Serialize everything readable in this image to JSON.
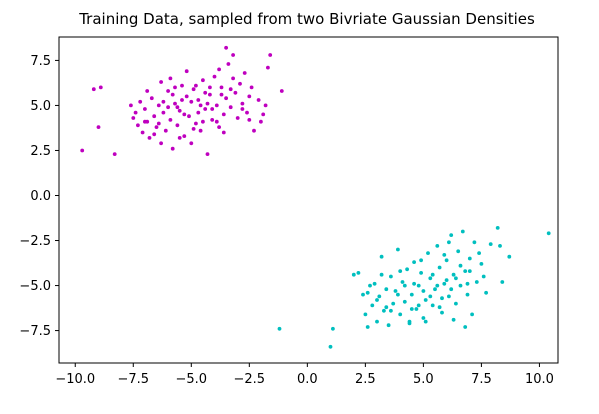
{
  "chart_data": {
    "type": "scatter",
    "title": "Training Data, sampled from two Bivriate Gaussian Densities",
    "xlabel": "",
    "ylabel": "",
    "xlim": [
      -10.7,
      10.8
    ],
    "ylim": [
      -9.3,
      8.8
    ],
    "xticks": [
      -10.0,
      -7.5,
      -5.0,
      -2.5,
      0.0,
      2.5,
      5.0,
      7.5,
      10.0
    ],
    "xtick_labels": [
      "−10.0",
      "−7.5",
      "−5.0",
      "−2.5",
      "0.0",
      "2.5",
      "5.0",
      "7.5",
      "10.0"
    ],
    "yticks": [
      7.5,
      5.0,
      2.5,
      0.0,
      -2.5,
      -5.0,
      -7.5
    ],
    "ytick_labels": [
      "7.5",
      "5.0",
      "2.5",
      "0.0",
      "−2.5",
      "−5.0",
      "−7.5"
    ],
    "grid": false,
    "legend": "none",
    "series": [
      {
        "color": "#bf00bf",
        "points": [
          [
            -9.7,
            2.5
          ],
          [
            -9.2,
            5.9
          ],
          [
            -8.9,
            6.0
          ],
          [
            -9.0,
            3.8
          ],
          [
            -8.3,
            2.3
          ],
          [
            -7.6,
            5.0
          ],
          [
            -7.5,
            4.3
          ],
          [
            -7.4,
            4.6
          ],
          [
            -7.3,
            3.9
          ],
          [
            -7.2,
            5.2
          ],
          [
            -7.1,
            3.5
          ],
          [
            -7.0,
            4.8
          ],
          [
            -6.9,
            4.1
          ],
          [
            -6.8,
            3.2
          ],
          [
            -6.7,
            5.4
          ],
          [
            -6.6,
            4.4
          ],
          [
            -6.5,
            3.8
          ],
          [
            -6.4,
            5.0
          ],
          [
            -6.3,
            2.9
          ],
          [
            -6.2,
            4.6
          ],
          [
            -6.1,
            3.6
          ],
          [
            -6.0,
            5.8
          ],
          [
            -5.9,
            4.2
          ],
          [
            -5.8,
            2.6
          ],
          [
            -5.7,
            5.1
          ],
          [
            -5.6,
            3.9
          ],
          [
            -5.5,
            4.7
          ],
          [
            -5.4,
            6.1
          ],
          [
            -5.3,
            3.3
          ],
          [
            -5.2,
            5.5
          ],
          [
            -5.1,
            4.4
          ],
          [
            -5.0,
            2.9
          ],
          [
            -4.9,
            5.9
          ],
          [
            -4.8,
            4.0
          ],
          [
            -4.7,
            5.3
          ],
          [
            -4.6,
            3.6
          ],
          [
            -4.5,
            6.4
          ],
          [
            -4.4,
            4.8
          ],
          [
            -4.3,
            2.3
          ],
          [
            -4.2,
            5.6
          ],
          [
            -4.1,
            4.2
          ],
          [
            -4.0,
            6.6
          ],
          [
            -3.9,
            5.0
          ],
          [
            -3.8,
            3.8
          ],
          [
            -3.7,
            6.0
          ],
          [
            -3.6,
            4.5
          ],
          [
            -3.5,
            5.4
          ],
          [
            -3.4,
            7.3
          ],
          [
            -3.3,
            4.9
          ],
          [
            -3.2,
            6.5
          ],
          [
            -3.1,
            5.7
          ],
          [
            -3.0,
            4.3
          ],
          [
            -2.9,
            6.2
          ],
          [
            -2.8,
            5.1
          ],
          [
            -2.6,
            4.6
          ],
          [
            -2.5,
            5.5
          ],
          [
            -2.4,
            6.0
          ],
          [
            -2.3,
            3.6
          ],
          [
            -2.1,
            5.3
          ],
          [
            -2.0,
            4.1
          ],
          [
            -1.8,
            5.0
          ],
          [
            -1.7,
            7.1
          ],
          [
            -1.6,
            7.8
          ],
          [
            -1.1,
            5.8
          ],
          [
            -1.9,
            4.5
          ],
          [
            -6.9,
            5.8
          ],
          [
            -6.3,
            6.3
          ],
          [
            -5.9,
            6.5
          ],
          [
            -5.2,
            6.9
          ],
          [
            -4.8,
            6.1
          ],
          [
            -4.2,
            6.0
          ],
          [
            -3.8,
            7.0
          ],
          [
            -3.5,
            8.2
          ],
          [
            -3.2,
            7.8
          ],
          [
            -2.7,
            6.8
          ],
          [
            -5.6,
            4.9
          ],
          [
            -5.0,
            5.2
          ],
          [
            -4.6,
            5.0
          ],
          [
            -4.1,
            4.8
          ],
          [
            -5.3,
            4.5
          ],
          [
            -6.2,
            5.2
          ],
          [
            -5.8,
            5.6
          ],
          [
            -4.4,
            5.7
          ],
          [
            -3.9,
            4.1
          ],
          [
            -6.6,
            3.4
          ],
          [
            -5.5,
            3.2
          ],
          [
            -4.9,
            3.7
          ],
          [
            -4.5,
            4.1
          ],
          [
            -3.6,
            3.5
          ],
          [
            -7.0,
            4.1
          ],
          [
            -6.4,
            4.0
          ],
          [
            -6.0,
            4.9
          ],
          [
            -5.4,
            5.3
          ],
          [
            -4.7,
            4.6
          ],
          [
            -4.3,
            5.1
          ],
          [
            -3.7,
            5.6
          ],
          [
            -3.3,
            5.9
          ],
          [
            -2.8,
            4.8
          ],
          [
            -2.5,
            4.2
          ],
          [
            -5.7,
            6.0
          ]
        ]
      },
      {
        "color": "#00bfbf",
        "points": [
          [
            -1.2,
            -7.4
          ],
          [
            1.0,
            -8.4
          ],
          [
            1.1,
            -7.4
          ],
          [
            2.0,
            -4.4
          ],
          [
            2.2,
            -4.3
          ],
          [
            2.4,
            -5.5
          ],
          [
            2.5,
            -6.6
          ],
          [
            2.6,
            -7.3
          ],
          [
            2.7,
            -5.0
          ],
          [
            2.8,
            -6.1
          ],
          [
            2.9,
            -4.9
          ],
          [
            3.0,
            -7.0
          ],
          [
            3.1,
            -5.6
          ],
          [
            3.2,
            -3.4
          ],
          [
            3.3,
            -6.4
          ],
          [
            3.4,
            -5.2
          ],
          [
            3.5,
            -7.2
          ],
          [
            3.6,
            -4.5
          ],
          [
            3.7,
            -6.0
          ],
          [
            3.8,
            -5.3
          ],
          [
            3.9,
            -3.0
          ],
          [
            4.0,
            -6.6
          ],
          [
            4.1,
            -4.8
          ],
          [
            4.2,
            -5.9
          ],
          [
            4.3,
            -4.1
          ],
          [
            4.4,
            -7.0
          ],
          [
            4.5,
            -5.5
          ],
          [
            4.6,
            -3.7
          ],
          [
            4.7,
            -6.3
          ],
          [
            4.8,
            -5.0
          ],
          [
            4.9,
            -4.3
          ],
          [
            5.0,
            -6.8
          ],
          [
            5.1,
            -5.8
          ],
          [
            5.2,
            -3.2
          ],
          [
            5.3,
            -4.6
          ],
          [
            5.4,
            -6.1
          ],
          [
            5.5,
            -5.2
          ],
          [
            5.6,
            -2.8
          ],
          [
            5.7,
            -4.0
          ],
          [
            5.8,
            -6.5
          ],
          [
            5.9,
            -4.9
          ],
          [
            6.0,
            -3.6
          ],
          [
            6.1,
            -5.6
          ],
          [
            6.2,
            -2.2
          ],
          [
            6.3,
            -4.4
          ],
          [
            6.4,
            -6.0
          ],
          [
            6.5,
            -3.1
          ],
          [
            6.6,
            -5.0
          ],
          [
            6.7,
            -2.0
          ],
          [
            6.8,
            -4.2
          ],
          [
            6.9,
            -5.5
          ],
          [
            7.0,
            -3.5
          ],
          [
            7.1,
            -6.6
          ],
          [
            7.2,
            -2.6
          ],
          [
            7.3,
            -4.8
          ],
          [
            7.5,
            -3.8
          ],
          [
            7.7,
            -5.4
          ],
          [
            7.9,
            -2.7
          ],
          [
            8.2,
            -1.8
          ],
          [
            8.4,
            -4.8
          ],
          [
            8.7,
            -3.4
          ],
          [
            10.4,
            -2.1
          ],
          [
            8.3,
            -2.8
          ],
          [
            7.6,
            -4.5
          ],
          [
            6.3,
            -6.9
          ],
          [
            3.6,
            -6.4
          ],
          [
            4.4,
            -7.1
          ],
          [
            5.1,
            -7.0
          ],
          [
            5.7,
            -6.2
          ],
          [
            6.8,
            -7.3
          ],
          [
            4.8,
            -6.1
          ],
          [
            5.4,
            -4.4
          ],
          [
            6.0,
            -4.7
          ],
          [
            4.2,
            -5.0
          ],
          [
            3.9,
            -5.5
          ],
          [
            5.0,
            -5.3
          ],
          [
            5.6,
            -5.0
          ],
          [
            6.4,
            -4.6
          ],
          [
            4.6,
            -4.9
          ],
          [
            3.4,
            -6.2
          ],
          [
            3.0,
            -5.8
          ],
          [
            5.9,
            -3.3
          ],
          [
            6.6,
            -3.9
          ],
          [
            7.0,
            -4.2
          ],
          [
            6.1,
            -2.6
          ],
          [
            4.9,
            -3.6
          ],
          [
            4.0,
            -4.2
          ],
          [
            3.2,
            -4.4
          ],
          [
            2.6,
            -5.4
          ],
          [
            5.3,
            -5.6
          ],
          [
            4.5,
            -6.3
          ],
          [
            5.8,
            -5.7
          ],
          [
            6.2,
            -5.2
          ],
          [
            6.9,
            -4.9
          ],
          [
            7.4,
            -3.2
          ]
        ]
      }
    ]
  }
}
